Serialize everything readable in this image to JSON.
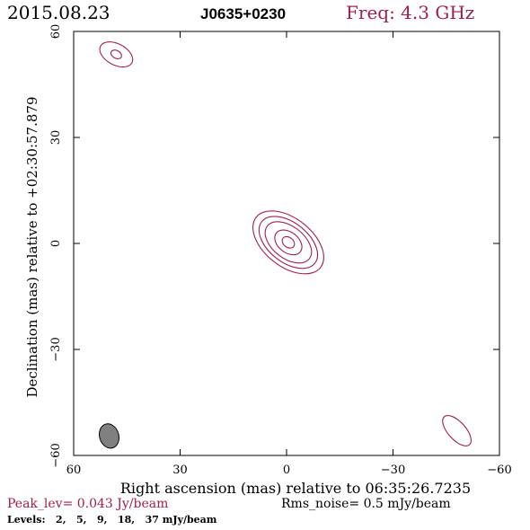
{
  "header": {
    "date": "2015.08.23",
    "source": "J0635+0230",
    "freq": "Freq: 4.3 GHz"
  },
  "footer": {
    "peak": "Peak_lev=  0.043 Jy/beam",
    "rms": "Rms_noise=   0.5 mJy/beam",
    "levels": "Levels:   2,   5,   9,   18,   37 mJy/beam"
  },
  "colors": {
    "accent": "#a0204a",
    "ink": "#000000",
    "beam_fill": "#808080"
  },
  "chart_data": {
    "type": "contour",
    "title": "",
    "xlabel": "Right ascension (mas) relative to 06:35:26.7235",
    "ylabel": "Declination (mas) relative to +02:30:57.879",
    "xlim": [
      60,
      -60
    ],
    "ylim": [
      -60,
      60
    ],
    "x_ticks": [
      60,
      30,
      0,
      -30,
      -60
    ],
    "y_ticks": [
      60,
      30,
      0,
      -30,
      -60
    ],
    "x_tick_labels": [
      "60",
      "30",
      "0",
      "−30",
      "−60"
    ],
    "y_tick_labels": [
      "60",
      "30",
      "0",
      "−30",
      "−60"
    ],
    "contour_levels_mJy_per_beam": [
      2,
      5,
      9,
      18,
      37
    ],
    "peak_Jy_per_beam": 0.043,
    "rms_noise_mJy_per_beam": 0.5,
    "components": [
      {
        "center": [
          -0.5,
          0.3
        ],
        "contours": [
          {
            "level": 2,
            "semi_major": 11.5,
            "semi_minor": 6.8,
            "angle_deg": -38
          },
          {
            "level": 5,
            "semi_major": 9.5,
            "semi_minor": 5.6,
            "angle_deg": -38
          },
          {
            "level": 9,
            "semi_major": 7.5,
            "semi_minor": 4.5,
            "angle_deg": -38
          },
          {
            "level": 18,
            "semi_major": 4.3,
            "semi_minor": 2.9,
            "angle_deg": -38
          },
          {
            "level": 37,
            "semi_major": 1.9,
            "semi_minor": 1.4,
            "angle_deg": -38
          }
        ]
      },
      {
        "center": [
          48,
          53.5
        ],
        "contours": [
          {
            "level": 2,
            "semi_major": 5.0,
            "semi_minor": 3.0,
            "angle_deg": -28
          },
          {
            "level": 5,
            "semi_major": 1.6,
            "semi_minor": 1.1,
            "angle_deg": -28
          }
        ]
      },
      {
        "center": [
          -48,
          -53
        ],
        "contours": [
          {
            "level": 2,
            "semi_major": 5.3,
            "semi_minor": 2.5,
            "angle_deg": -48
          }
        ]
      }
    ],
    "beam": {
      "center": [
        50,
        -54.5
      ],
      "semi_major": 3.5,
      "semi_minor": 2.7,
      "angle_deg": 17
    },
    "grid": false
  }
}
